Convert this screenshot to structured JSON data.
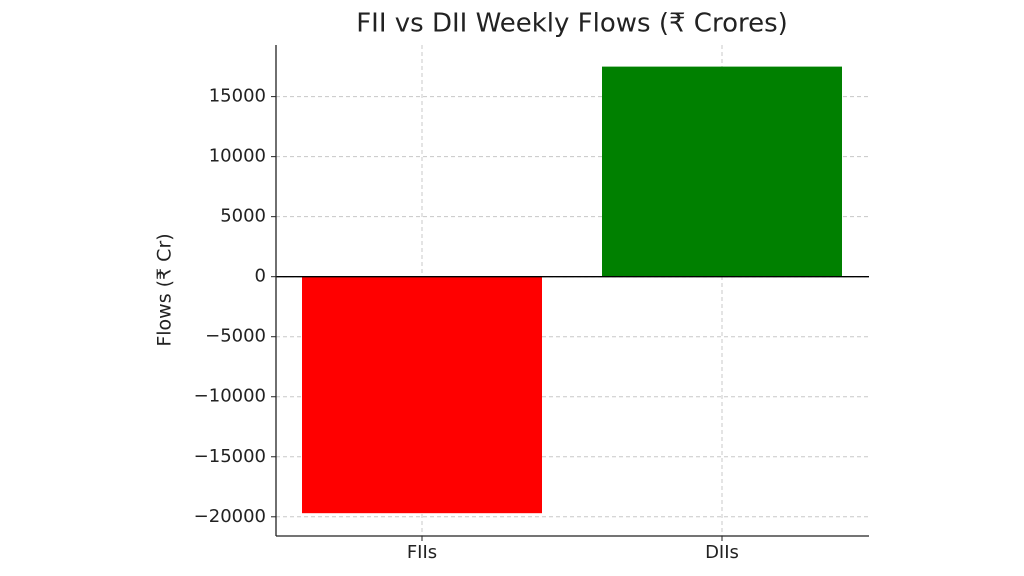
{
  "chart_data": {
    "type": "bar",
    "title": "FII vs DII Weekly Flows (₹ Crores)",
    "y_label": "Flows (₹ Cr)",
    "categories": [
      "FIIs",
      "DIIs"
    ],
    "values": [
      -19700,
      17500
    ],
    "colors": [
      "#ff0000",
      "#008000"
    ],
    "ylim": [
      -21600,
      19300
    ],
    "yticks": [
      {
        "value": -20000,
        "label": "−20000"
      },
      {
        "value": -15000,
        "label": "−15000"
      },
      {
        "value": -10000,
        "label": "−10000"
      },
      {
        "value": -5000,
        "label": "−5000"
      },
      0,
      5000,
      10000,
      15000
    ],
    "grid": true,
    "zero_line": true
  }
}
